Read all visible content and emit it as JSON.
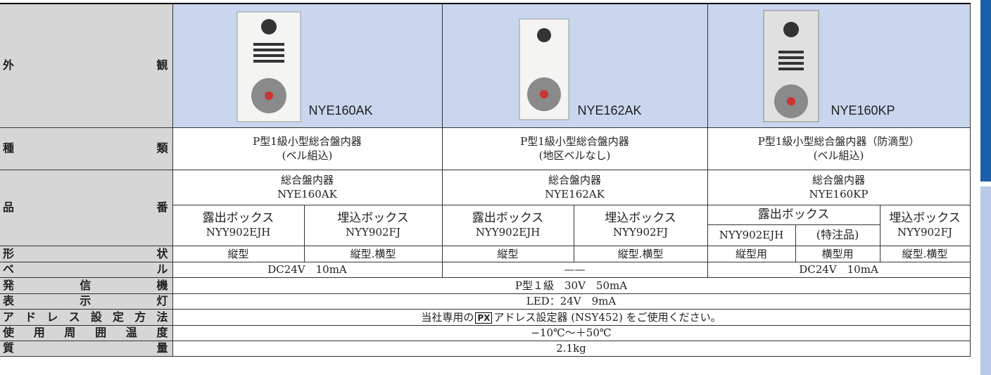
{
  "labels": [
    "外観",
    "種類",
    "品番",
    "形状",
    "ベル",
    "発信機",
    "表示灯",
    "アドレス設定方法",
    "使用周囲温度",
    "質量"
  ],
  "products": [
    "NYE160AK",
    "NYE162AK",
    "NYE160KP"
  ],
  "types": [
    [
      "P型1級小型総合盤内器",
      "(ベル組込)"
    ],
    [
      "P型1級小型総合盤内器",
      "(地区ベルなし)"
    ],
    [
      "P型1級小型総合盤内器（防滴型）",
      "(ベル組込)"
    ]
  ],
  "model_heads": [
    [
      "総合盤内器",
      "NYE160AK"
    ],
    [
      "総合盤内器",
      "NYE162AK"
    ],
    [
      "総合盤内器",
      "NYE160KP"
    ]
  ],
  "boxes": {
    "exposed": "露出ボックス",
    "embedded": "埋込ボックス",
    "special": "(特注品)",
    "exposed_no": "NYY902EJH",
    "embedded_no": "NYY902FJ"
  },
  "shape": [
    "縦型",
    "縦型.横型",
    "縦型",
    "縦型.横型",
    "縦型用",
    "横型用",
    "縦型.横型"
  ],
  "bell": [
    "DC24V　10mA",
    "——",
    "DC24V　10mA"
  ],
  "transmitter": "P型１級　30V　50mA",
  "indicator": "LED：24V　9mA",
  "address": {
    "before": "当社専用の",
    "badge": "PX",
    "after": "アドレス設定器 (NSY452) をご使用ください。"
  },
  "temperature": "−10℃〜＋50℃",
  "mass": "2.1kg"
}
